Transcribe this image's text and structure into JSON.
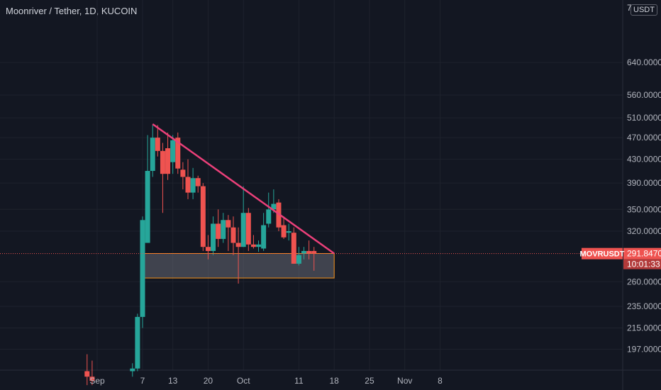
{
  "symbol_title": "Moonriver / Tether, 1D, KUCOIN",
  "top_scale_label": "7",
  "currency": "USDT",
  "price_tag": {
    "symbol": "MOVRUSDT",
    "price": "291.8470",
    "countdown": "10:01:33"
  },
  "colors": {
    "bg": "#131722",
    "up": "#26a69a",
    "down": "#ef5350",
    "trendline": "#ec407a",
    "zone": "#f7931a",
    "grid": "#1e222d"
  },
  "chart_data": {
    "type": "candlestick",
    "title": "Moonriver / Tether, 1D, KUCOIN",
    "scale": "log",
    "y_ticks": [
      "640.0000",
      "560.0000",
      "510.0000",
      "470.0000",
      "430.0000",
      "390.0000",
      "350.0000",
      "320.0000",
      "260.0000",
      "235.0000",
      "215.0000",
      "197.0000"
    ],
    "y_tick_values": [
      640,
      560,
      510,
      470,
      430,
      390,
      350,
      320,
      260,
      235,
      215,
      197
    ],
    "x_ticks": [
      "Sep",
      "7",
      "13",
      "20",
      "Oct",
      "11",
      "18",
      "25",
      "Nov",
      "8"
    ],
    "x_tick_days": [
      -2,
      7,
      13,
      20,
      27,
      38,
      45,
      52,
      59,
      66
    ],
    "candles": [
      {
        "d": -4,
        "o": 180,
        "h": 193,
        "l": 170,
        "c": 176
      },
      {
        "d": -3,
        "o": 176,
        "h": 188,
        "l": 170,
        "c": 173
      },
      {
        "d": 5,
        "o": 180,
        "h": 186,
        "l": 176,
        "c": 182
      },
      {
        "d": 6,
        "o": 182,
        "h": 228,
        "l": 180,
        "c": 225
      },
      {
        "d": 7,
        "o": 225,
        "h": 340,
        "l": 215,
        "c": 335
      },
      {
        "d": 8,
        "o": 305,
        "h": 475,
        "l": 305,
        "c": 410
      },
      {
        "d": 9,
        "o": 410,
        "h": 495,
        "l": 400,
        "c": 470
      },
      {
        "d": 10,
        "o": 470,
        "h": 495,
        "l": 435,
        "c": 445
      },
      {
        "d": 11,
        "o": 445,
        "h": 460,
        "l": 345,
        "c": 405
      },
      {
        "d": 12,
        "o": 450,
        "h": 480,
        "l": 395,
        "c": 405
      },
      {
        "d": 13,
        "o": 425,
        "h": 475,
        "l": 405,
        "c": 465
      },
      {
        "d": 14,
        "o": 470,
        "h": 480,
        "l": 405,
        "c": 414
      },
      {
        "d": 15,
        "o": 412,
        "h": 425,
        "l": 380,
        "c": 400
      },
      {
        "d": 16,
        "o": 400,
        "h": 430,
        "l": 365,
        "c": 375
      },
      {
        "d": 17,
        "o": 375,
        "h": 415,
        "l": 365,
        "c": 398
      },
      {
        "d": 18,
        "o": 398,
        "h": 402,
        "l": 375,
        "c": 385
      },
      {
        "d": 19,
        "o": 385,
        "h": 390,
        "l": 295,
        "c": 300
      },
      {
        "d": 20,
        "o": 300,
        "h": 315,
        "l": 285,
        "c": 295
      },
      {
        "d": 21,
        "o": 295,
        "h": 340,
        "l": 290,
        "c": 330
      },
      {
        "d": 22,
        "o": 330,
        "h": 350,
        "l": 300,
        "c": 310
      },
      {
        "d": 23,
        "o": 310,
        "h": 345,
        "l": 305,
        "c": 335
      },
      {
        "d": 24,
        "o": 335,
        "h": 342,
        "l": 295,
        "c": 325
      },
      {
        "d": 25,
        "o": 325,
        "h": 340,
        "l": 290,
        "c": 305
      },
      {
        "d": 26,
        "o": 305,
        "h": 325,
        "l": 258,
        "c": 300
      },
      {
        "d": 27,
        "o": 300,
        "h": 385,
        "l": 300,
        "c": 345
      },
      {
        "d": 28,
        "o": 345,
        "h": 352,
        "l": 295,
        "c": 303
      },
      {
        "d": 29,
        "o": 303,
        "h": 315,
        "l": 298,
        "c": 300
      },
      {
        "d": 30,
        "o": 300,
        "h": 308,
        "l": 294,
        "c": 303
      },
      {
        "d": 31,
        "o": 298,
        "h": 345,
        "l": 295,
        "c": 328
      },
      {
        "d": 32,
        "o": 330,
        "h": 375,
        "l": 325,
        "c": 350
      },
      {
        "d": 33,
        "o": 350,
        "h": 380,
        "l": 345,
        "c": 358
      },
      {
        "d": 34,
        "o": 360,
        "h": 365,
        "l": 320,
        "c": 325
      },
      {
        "d": 35,
        "o": 328,
        "h": 340,
        "l": 310,
        "c": 312
      },
      {
        "d": 36,
        "o": 318,
        "h": 330,
        "l": 308,
        "c": 320
      },
      {
        "d": 37,
        "o": 318,
        "h": 325,
        "l": 280,
        "c": 280
      },
      {
        "d": 38,
        "o": 280,
        "h": 300,
        "l": 278,
        "c": 290
      },
      {
        "d": 39,
        "o": 292,
        "h": 300,
        "l": 285,
        "c": 295
      },
      {
        "d": 40,
        "o": 295,
        "h": 308,
        "l": 285,
        "c": 292
      },
      {
        "d": 41,
        "o": 295,
        "h": 300,
        "l": 272,
        "c": 292
      }
    ],
    "trendline": [
      {
        "d": 9,
        "p": 497
      },
      {
        "d": 45,
        "p": 292
      }
    ],
    "support_zone": {
      "d_start": 7,
      "d_end": 45,
      "top": 292,
      "bottom": 264
    },
    "current_price": 291.847
  }
}
